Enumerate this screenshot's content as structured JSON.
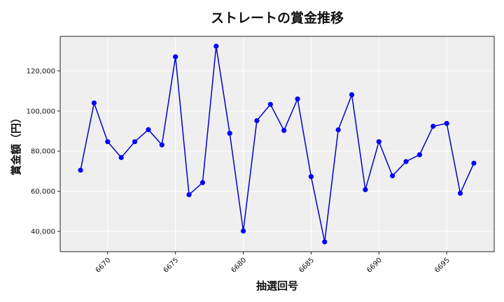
{
  "chart_data": {
    "type": "line",
    "title": "ストレートの賞金推移",
    "xlabel": "抽選回号",
    "ylabel": "賞金額（円）",
    "x": [
      6668,
      6669,
      6670,
      6671,
      6672,
      6673,
      6674,
      6675,
      6676,
      6677,
      6678,
      6679,
      6680,
      6681,
      6682,
      6683,
      6684,
      6685,
      6686,
      6687,
      6688,
      6689,
      6690,
      6691,
      6692,
      6693,
      6694,
      6695,
      6696,
      6697
    ],
    "series": [
      {
        "values": [
          70500,
          104000,
          84700,
          76800,
          84700,
          90700,
          83100,
          127000,
          58300,
          64300,
          132300,
          88900,
          40200,
          95200,
          103300,
          90300,
          106000,
          67300,
          34800,
          90600,
          108100,
          60800,
          84700,
          67700,
          74800,
          78200,
          92400,
          93800,
          59000,
          74000
        ],
        "color": "#0000ff"
      }
    ],
    "xlim": [
      6666.5,
      6698.5
    ],
    "ylim": [
      29900,
      137200
    ],
    "xticks": [
      6670,
      6675,
      6680,
      6685,
      6690,
      6695
    ],
    "yticks": [
      40000,
      60000,
      80000,
      100000,
      120000
    ],
    "xtick_labels": [
      "6670",
      "6675",
      "6680",
      "6685",
      "6690",
      "6695"
    ],
    "ytick_labels": [
      "40,000",
      "60,000",
      "80,000",
      "100,000",
      "120,000"
    ],
    "grid": true,
    "legend": "none",
    "colors": {
      "plot_bg": "#efefef",
      "grid": "#ffffff",
      "line": "#0000cc",
      "marker": "#0000ff"
    }
  }
}
